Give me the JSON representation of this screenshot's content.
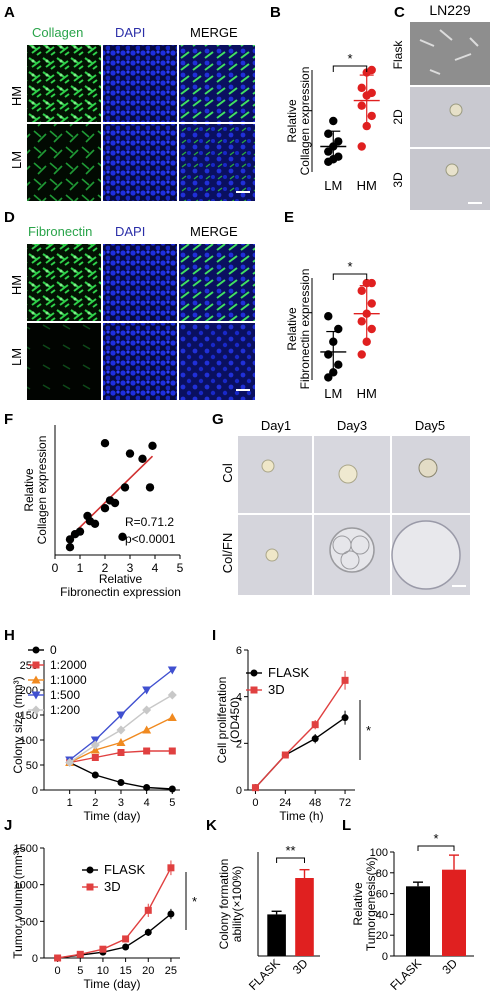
{
  "panels": {
    "A": "A",
    "B": "B",
    "C": "C",
    "D": "D",
    "E": "E",
    "F": "F",
    "G": "G",
    "H": "H",
    "I": "I",
    "J": "J",
    "K": "K",
    "L": "L"
  },
  "panelA": {
    "col_labels": [
      "Collagen",
      "DAPI",
      "MERGE"
    ],
    "row_labels": [
      "HM",
      "LM"
    ],
    "col_colors": [
      "#2aa44a",
      "#2b2fa8",
      "#111111"
    ]
  },
  "panelC": {
    "title": "LN229",
    "row_labels": [
      "Flask",
      "2D",
      "3D"
    ]
  },
  "panelD": {
    "col_labels": [
      "Fibronectin",
      "DAPI",
      "MERGE"
    ],
    "row_labels": [
      "HM",
      "LM"
    ],
    "col_colors": [
      "#2aa44a",
      "#2b2fa8",
      "#111111"
    ]
  },
  "panelG": {
    "col_labels": [
      "Day1",
      "Day3",
      "Day5"
    ],
    "row_labels": [
      "Col",
      "Col/FN"
    ]
  },
  "chart_data": [
    {
      "id": "B",
      "type": "scatter",
      "ylabel": "Relative\nCollagen expression",
      "categories": [
        "LM",
        "HM"
      ],
      "ylim": [
        0,
        4
      ],
      "sig": "*",
      "groups": [
        {
          "name": "LM",
          "color": "#000000",
          "points": [
            0.4,
            0.5,
            0.6,
            0.8,
            1.0,
            1.2,
            1.5,
            2.0
          ],
          "mean": 1.0,
          "sd": 0.6
        },
        {
          "name": "HM",
          "color": "#e02020",
          "points": [
            1.0,
            1.8,
            2.2,
            2.6,
            3.0,
            3.1,
            3.3,
            3.9,
            4.0
          ],
          "mean": 2.8,
          "sd": 1.0
        }
      ]
    },
    {
      "id": "E",
      "type": "scatter",
      "ylabel": "Relative\nFibronectin expression",
      "categories": [
        "LM",
        "HM"
      ],
      "ylim": [
        0,
        4
      ],
      "sig": "*",
      "groups": [
        {
          "name": "LM",
          "color": "#000000",
          "points": [
            0.1,
            0.3,
            0.6,
            1.0,
            1.5,
            2.0,
            2.5
          ],
          "mean": 1.1,
          "sd": 0.8
        },
        {
          "name": "HM",
          "color": "#e02020",
          "points": [
            1.0,
            1.5,
            2.0,
            2.3,
            2.6,
            3.0,
            3.5,
            3.8,
            3.8
          ],
          "mean": 2.6,
          "sd": 1.1
        }
      ]
    },
    {
      "id": "F",
      "type": "scatter",
      "xlabel": "Relative\nFibronectin expression",
      "ylabel": "Relative\nCollagen expression",
      "xlim": [
        0,
        5
      ],
      "ylim": [
        0,
        5
      ],
      "xticks": [
        0,
        1,
        2,
        3,
        4,
        5
      ],
      "annotation": [
        "R=0.71.2",
        "p<0.0001"
      ],
      "points": [
        [
          0.6,
          0.3
        ],
        [
          0.6,
          0.6
        ],
        [
          0.8,
          0.8
        ],
        [
          1.0,
          0.9
        ],
        [
          1.3,
          1.5
        ],
        [
          1.4,
          1.3
        ],
        [
          1.6,
          1.2
        ],
        [
          2.0,
          4.3
        ],
        [
          2.2,
          2.1
        ],
        [
          2.4,
          2.0
        ],
        [
          2.7,
          0.7
        ],
        [
          2.8,
          2.6
        ],
        [
          3.0,
          3.9
        ],
        [
          3.5,
          3.7
        ],
        [
          3.9,
          4.2
        ],
        [
          3.8,
          2.6
        ],
        [
          2.0,
          1.8
        ]
      ],
      "fit": [
        [
          0.5,
          0.6
        ],
        [
          3.9,
          3.8
        ]
      ]
    },
    {
      "id": "H",
      "type": "line",
      "xlabel": "Time (day)",
      "ylabel": "Colony size (mm³)",
      "x": [
        1,
        2,
        3,
        4,
        5
      ],
      "ylim": [
        0,
        260
      ],
      "yticks": [
        0,
        50,
        100,
        150,
        200,
        250
      ],
      "series": [
        {
          "name": "0",
          "color": "#000000",
          "marker": "circle",
          "values": [
            55,
            30,
            15,
            5,
            2
          ]
        },
        {
          "name": "1:2000",
          "color": "#e04040",
          "marker": "square",
          "values": [
            55,
            65,
            75,
            78,
            78
          ]
        },
        {
          "name": "1:1000",
          "color": "#f08a20",
          "marker": "triangle",
          "values": [
            55,
            80,
            95,
            120,
            145
          ]
        },
        {
          "name": "1:500",
          "color": "#4050d0",
          "marker": "tridown",
          "values": [
            60,
            100,
            150,
            200,
            240
          ]
        },
        {
          "name": "1:200",
          "color": "#c8c8c8",
          "marker": "diamond",
          "values": [
            55,
            90,
            120,
            160,
            190
          ]
        }
      ]
    },
    {
      "id": "I",
      "type": "line",
      "xlabel": "Time (h)",
      "ylabel": "Cell proliferation\n(OD450)",
      "x": [
        0,
        24,
        48,
        72
      ],
      "ylim": [
        0,
        6
      ],
      "yticks": [
        0,
        2,
        4,
        6
      ],
      "sig": "*",
      "series": [
        {
          "name": "FLASK",
          "color": "#000000",
          "marker": "circle",
          "values": [
            0.1,
            1.5,
            2.2,
            3.1
          ],
          "err": [
            0,
            0.1,
            0.2,
            0.3
          ]
        },
        {
          "name": "3D",
          "color": "#e04040",
          "marker": "square",
          "values": [
            0.1,
            1.5,
            2.8,
            4.7
          ],
          "err": [
            0,
            0.1,
            0.2,
            0.4
          ]
        }
      ]
    },
    {
      "id": "J",
      "type": "line",
      "xlabel": "Time (day)",
      "ylabel": "Tumor volume (mm³)",
      "x": [
        0,
        5,
        10,
        15,
        20,
        25
      ],
      "ylim": [
        0,
        1500
      ],
      "yticks": [
        0,
        500,
        1000,
        1500
      ],
      "sig": "*",
      "series": [
        {
          "name": "FLASK",
          "color": "#000000",
          "marker": "circle",
          "values": [
            0,
            40,
            80,
            150,
            350,
            600
          ],
          "err": [
            0,
            10,
            20,
            30,
            50,
            70
          ]
        },
        {
          "name": "3D",
          "color": "#e04040",
          "marker": "square",
          "values": [
            0,
            50,
            120,
            260,
            650,
            1230
          ],
          "err": [
            0,
            10,
            20,
            40,
            90,
            100
          ]
        }
      ]
    },
    {
      "id": "K",
      "type": "bar",
      "ylabel": "Colony formation\nability(×100%)",
      "categories": [
        "FLASK",
        "3D"
      ],
      "ylim": [
        0,
        100
      ],
      "yticks": [
        0,
        20,
        40,
        60,
        80,
        100
      ],
      "sig": "**",
      "values": [
        40,
        75
      ],
      "err": [
        3,
        8
      ],
      "colors": [
        "#000000",
        "#e02020"
      ]
    },
    {
      "id": "L",
      "type": "bar",
      "ylabel": "Relative\nTumorgenesis(%)",
      "categories": [
        "FLASK",
        "3D"
      ],
      "ylim": [
        0,
        100
      ],
      "yticks": [
        0,
        20,
        40,
        60,
        80,
        100
      ],
      "sig": "*",
      "values": [
        67,
        83
      ],
      "err": [
        4,
        14
      ],
      "colors": [
        "#000000",
        "#e02020"
      ]
    }
  ]
}
